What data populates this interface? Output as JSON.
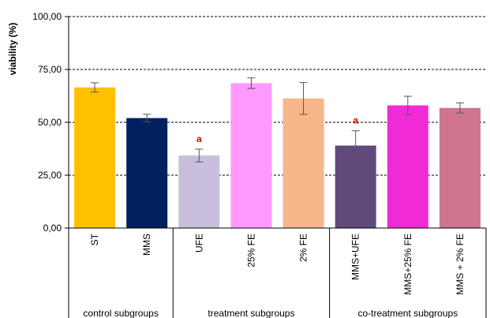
{
  "chart_data": {
    "type": "bar",
    "ylabel": "viability (%)",
    "xlabel": "",
    "ylim": [
      0,
      100
    ],
    "yticks": [
      "0,00",
      "25,00",
      "50,00",
      "75,00",
      "100,00"
    ],
    "grid": "horizontal dashed",
    "categories": [
      "ST",
      "MMS",
      "UFE",
      "25% FE",
      "2% FE",
      "MMS+UFE",
      "MMS+25% FE",
      "MMS + 2% FE"
    ],
    "values": [
      66.5,
      52.0,
      34.3,
      68.5,
      61.3,
      39.0,
      58.0,
      56.8
    ],
    "errors": [
      2.2,
      1.8,
      3.0,
      2.5,
      7.5,
      7.0,
      4.3,
      2.4
    ],
    "colors": [
      "#ffc000",
      "#002060",
      "#c9bfdc",
      "#ff99ff",
      "#f7b78a",
      "#604a7b",
      "#f02bd6",
      "#d0758e"
    ],
    "significance": [
      "",
      "",
      "a",
      "",
      "",
      "a",
      "",
      ""
    ],
    "groups": [
      {
        "label": "control subgroups",
        "start": 0,
        "end": 1
      },
      {
        "label": "treatment subgroups",
        "start": 2,
        "end": 4
      },
      {
        "label": "co-treatment subgroups",
        "start": 5,
        "end": 7
      }
    ]
  }
}
